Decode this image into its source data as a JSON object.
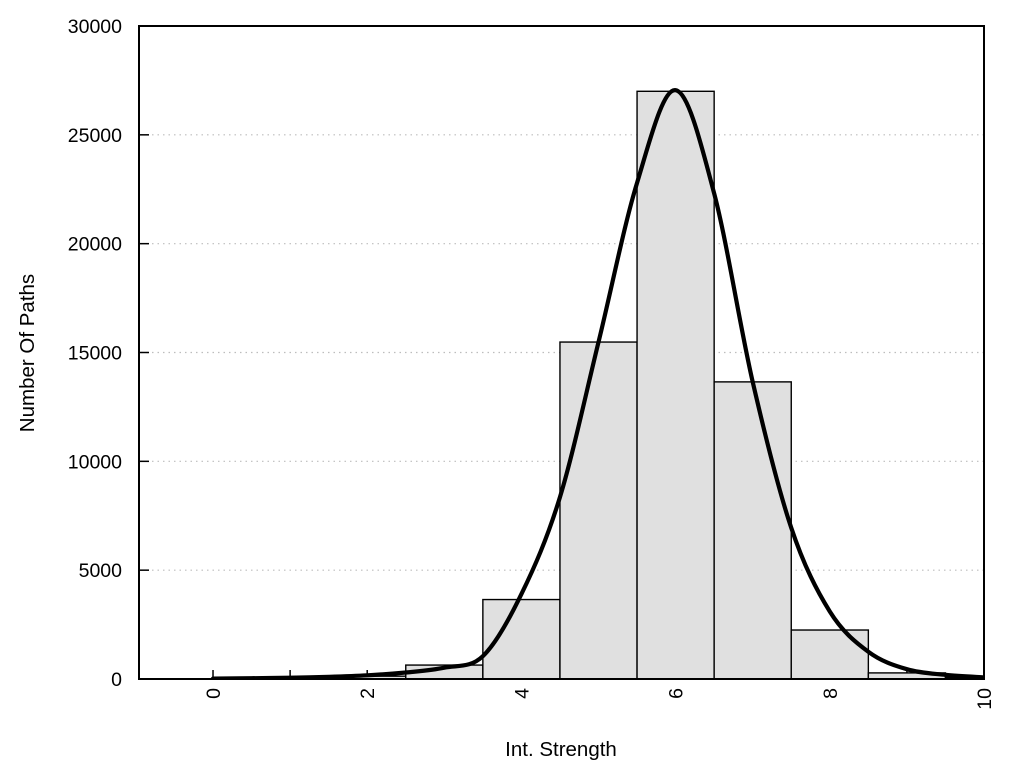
{
  "chart_data": {
    "type": "bar",
    "subtype": "histogram-with-fit-curve",
    "title": "",
    "xlabel": "Int. Strength",
    "ylabel": "Number Of Paths",
    "xlim": [
      -0.96,
      10
    ],
    "ylim": [
      0,
      30000
    ],
    "grid": "horizontal-dotted",
    "legend": "none",
    "bar_bin_width": 1,
    "categories": [
      1,
      2,
      3,
      4,
      5,
      6,
      7,
      8,
      9,
      10
    ],
    "values": [
      20,
      130,
      640,
      3650,
      15480,
      27000,
      13650,
      2250,
      280,
      60
    ],
    "x_major_ticks": [
      0,
      2,
      4,
      6,
      8,
      10
    ],
    "x_major_tick_labels": [
      "0",
      "2",
      "4",
      "6",
      "8",
      "10"
    ],
    "x_minor_ticks": [
      1,
      3,
      5,
      7,
      9
    ],
    "y_ticks": [
      0,
      5000,
      10000,
      15000,
      20000,
      25000,
      30000
    ],
    "y_tick_labels": [
      "0",
      "5000",
      "10000",
      "15000",
      "20000",
      "25000",
      "30000"
    ],
    "series": [
      {
        "name": "fit-curve",
        "type": "line",
        "points": [
          [
            0,
            20
          ],
          [
            0.5,
            35
          ],
          [
            1,
            60
          ],
          [
            1.5,
            100
          ],
          [
            2,
            170
          ],
          [
            2.5,
            300
          ],
          [
            3,
            520
          ],
          [
            3.5,
            1050
          ],
          [
            4,
            3900
          ],
          [
            4.5,
            8360
          ],
          [
            5,
            15480
          ],
          [
            5.5,
            22800
          ],
          [
            6,
            27050
          ],
          [
            6.5,
            22300
          ],
          [
            7,
            13650
          ],
          [
            7.5,
            6940
          ],
          [
            8,
            3100
          ],
          [
            8.5,
            1250
          ],
          [
            9,
            450
          ],
          [
            9.5,
            190
          ],
          [
            10,
            80
          ]
        ]
      }
    ],
    "colors": {
      "background": "#ffffff",
      "bar_fill": "#e0e0e0",
      "bar_border": "#000000",
      "curve": "#000000",
      "frame": "#000000",
      "grid": "#bdbdbd",
      "text": "#000000"
    }
  }
}
